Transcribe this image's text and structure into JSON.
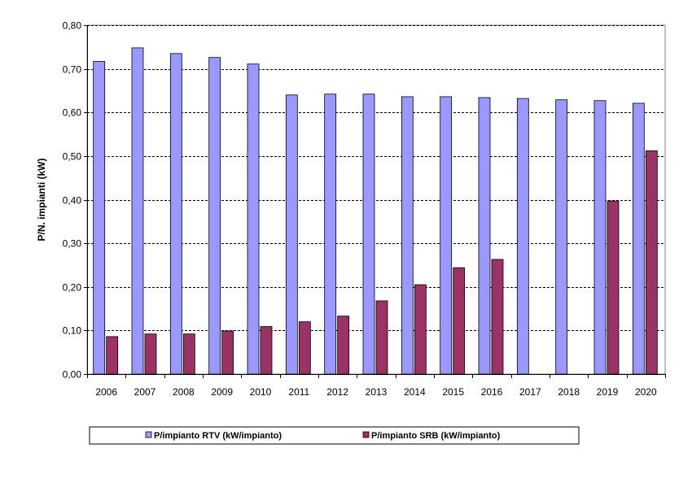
{
  "chart_data": {
    "type": "bar",
    "categories": [
      "2006",
      "2007",
      "2008",
      "2009",
      "2010",
      "2011",
      "2012",
      "2013",
      "2014",
      "2015",
      "2016",
      "2017",
      "2018",
      "2019",
      "2020"
    ],
    "series": [
      {
        "name": "P/impianto RTV (kW/impianto)",
        "color": "#9999ff",
        "values": [
          0.717,
          0.748,
          0.735,
          0.726,
          0.711,
          0.64,
          0.642,
          0.642,
          0.636,
          0.636,
          0.634,
          0.632,
          0.629,
          0.627,
          0.621
        ]
      },
      {
        "name": "P/impianto SRB (kW/impianto)",
        "color": "#993366",
        "values": [
          0.086,
          0.092,
          0.092,
          0.099,
          0.109,
          0.12,
          0.133,
          0.168,
          0.205,
          0.244,
          0.263,
          null,
          null,
          0.397,
          0.512
        ]
      }
    ],
    "xlabel": "",
    "ylabel": "P/N. impianti (kW)",
    "ylim": [
      0,
      0.8
    ],
    "yticks": [
      "0,00",
      "0,10",
      "0,20",
      "0,30",
      "0,40",
      "0,50",
      "0,60",
      "0,70",
      "0,80"
    ],
    "grid": "horizontal dashed",
    "legend_position": "bottom"
  }
}
